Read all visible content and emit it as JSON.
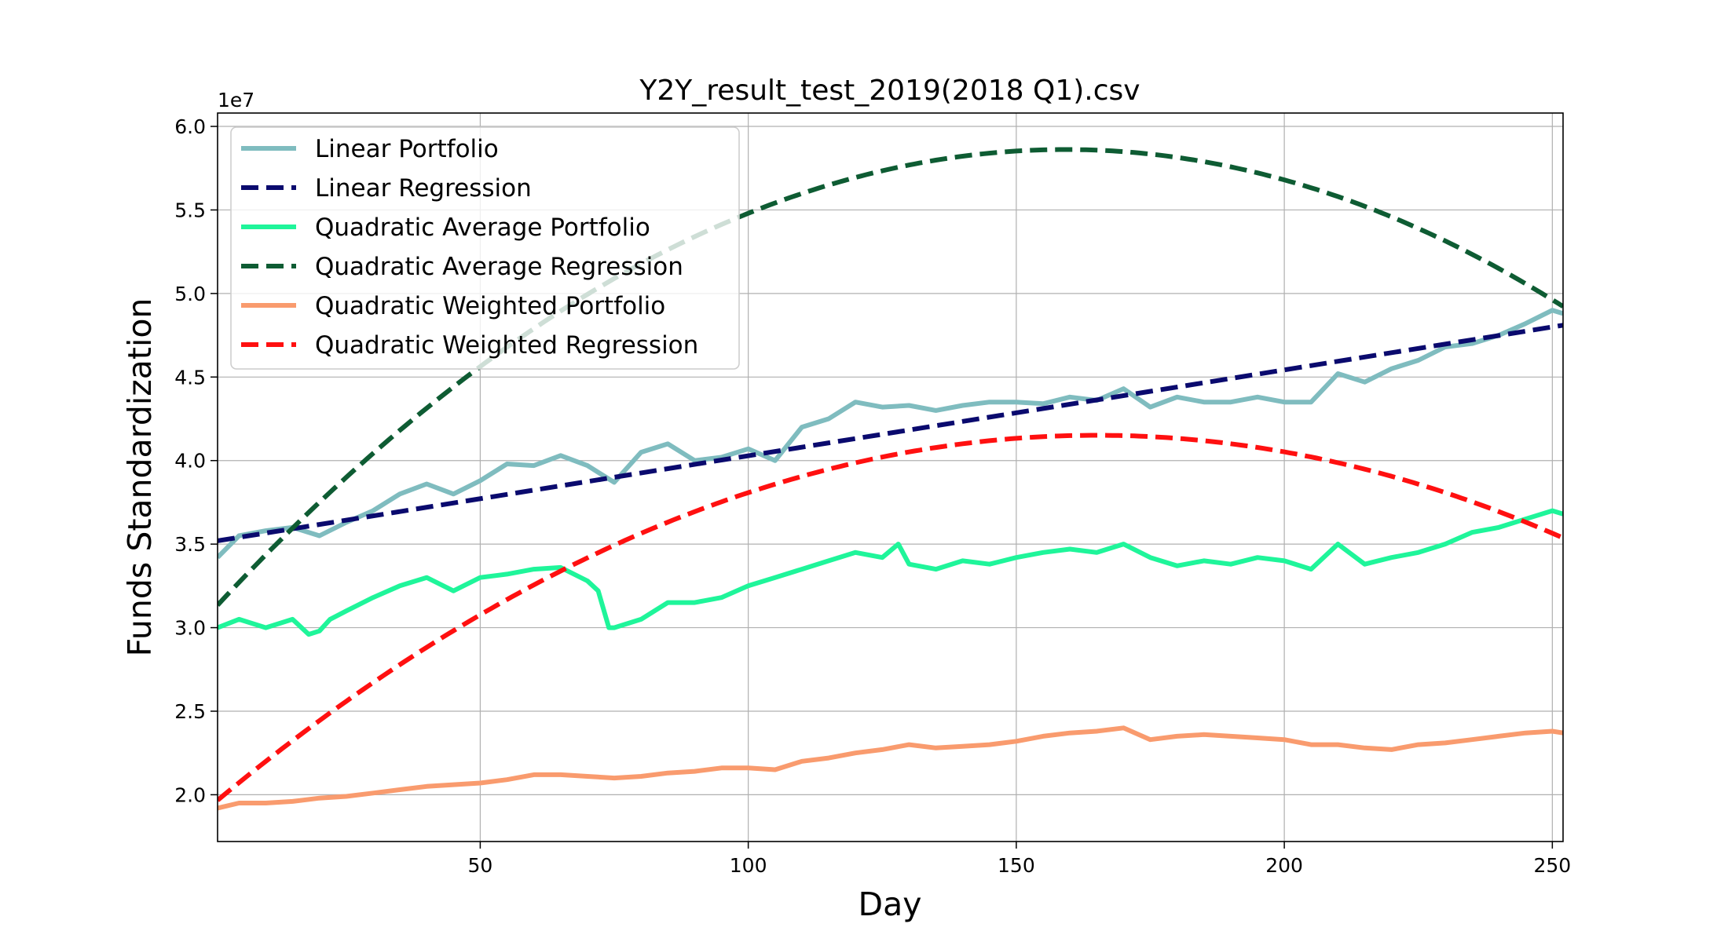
{
  "chart_data": {
    "type": "line",
    "title": "Y2Y_result_test_2019(2018 Q1).csv",
    "xlabel": "Day",
    "ylabel": "Funds Standardization",
    "y_offset_label": "1e7",
    "xlim": [
      1,
      252
    ],
    "ylim": [
      1.72,
      6.08
    ],
    "x_ticks": [
      50,
      100,
      150,
      200,
      250
    ],
    "x_tick_labels": [
      "50",
      "100",
      "150",
      "200",
      "250"
    ],
    "y_ticks": [
      2.0,
      2.5,
      3.0,
      3.5,
      4.0,
      4.5,
      5.0,
      5.5,
      6.0
    ],
    "y_tick_labels": [
      "2.0",
      "2.5",
      "3.0",
      "3.5",
      "4.0",
      "4.5",
      "5.0",
      "5.5",
      "6.0"
    ],
    "grid": true,
    "legend_position": "top-left",
    "series": [
      {
        "name": "Linear Portfolio",
        "style": "solid",
        "color": "#7fbcbf",
        "x": [
          1,
          5,
          10,
          15,
          20,
          25,
          30,
          35,
          40,
          45,
          50,
          55,
          60,
          65,
          70,
          75,
          80,
          85,
          90,
          95,
          100,
          105,
          110,
          115,
          120,
          125,
          130,
          135,
          140,
          145,
          150,
          155,
          160,
          165,
          170,
          175,
          180,
          185,
          190,
          195,
          200,
          205,
          210,
          215,
          220,
          225,
          230,
          235,
          240,
          245,
          250,
          252
        ],
        "y": [
          3.42,
          3.55,
          3.58,
          3.6,
          3.55,
          3.63,
          3.7,
          3.8,
          3.86,
          3.8,
          3.88,
          3.98,
          3.97,
          4.03,
          3.97,
          3.87,
          4.05,
          4.1,
          4.0,
          4.02,
          4.07,
          4.0,
          4.2,
          4.25,
          4.35,
          4.32,
          4.33,
          4.3,
          4.33,
          4.35,
          4.35,
          4.34,
          4.38,
          4.36,
          4.43,
          4.32,
          4.38,
          4.35,
          4.35,
          4.38,
          4.35,
          4.35,
          4.52,
          4.47,
          4.55,
          4.6,
          4.68,
          4.7,
          4.75,
          4.82,
          4.9,
          4.88
        ]
      },
      {
        "name": "Linear Regression",
        "style": "dashed",
        "color": "#0a0a6e",
        "x": [
          1,
          252
        ],
        "y": [
          3.52,
          4.81
        ]
      },
      {
        "name": "Quadratic Average Portfolio",
        "style": "solid",
        "color": "#1ff59a",
        "x": [
          1,
          5,
          10,
          15,
          18,
          20,
          22,
          25,
          30,
          35,
          40,
          45,
          50,
          55,
          60,
          65,
          70,
          72,
          74,
          75,
          80,
          85,
          90,
          95,
          100,
          105,
          110,
          115,
          120,
          125,
          128,
          130,
          135,
          140,
          145,
          150,
          155,
          160,
          165,
          170,
          175,
          180,
          185,
          190,
          195,
          200,
          205,
          210,
          215,
          220,
          225,
          230,
          235,
          240,
          245,
          250,
          252
        ],
        "y": [
          3.0,
          3.05,
          3.0,
          3.05,
          2.96,
          2.98,
          3.05,
          3.1,
          3.18,
          3.25,
          3.3,
          3.22,
          3.3,
          3.32,
          3.35,
          3.36,
          3.28,
          3.22,
          3.0,
          3.0,
          3.05,
          3.15,
          3.15,
          3.18,
          3.25,
          3.3,
          3.35,
          3.4,
          3.45,
          3.42,
          3.5,
          3.38,
          3.35,
          3.4,
          3.38,
          3.42,
          3.45,
          3.47,
          3.45,
          3.5,
          3.42,
          3.37,
          3.4,
          3.38,
          3.42,
          3.4,
          3.35,
          3.5,
          3.38,
          3.42,
          3.45,
          3.5,
          3.57,
          3.6,
          3.65,
          3.7,
          3.68
        ]
      },
      {
        "name": "Quadratic Average Regression",
        "style": "dashed",
        "color": "#0e5c33",
        "fn": "quad",
        "coeffs": [
          3.1,
          0.0347,
          -0.000109
        ],
        "x": [
          1,
          252
        ]
      },
      {
        "name": "Quadratic Weighted Portfolio",
        "style": "solid",
        "color": "#f99b6e",
        "x": [
          1,
          5,
          10,
          15,
          20,
          25,
          30,
          35,
          40,
          45,
          50,
          55,
          60,
          65,
          70,
          75,
          80,
          85,
          90,
          95,
          100,
          105,
          110,
          115,
          120,
          125,
          130,
          135,
          140,
          145,
          150,
          155,
          160,
          165,
          170,
          175,
          180,
          185,
          190,
          195,
          200,
          205,
          210,
          215,
          220,
          225,
          230,
          235,
          240,
          245,
          250,
          252
        ],
        "y": [
          1.92,
          1.95,
          1.95,
          1.96,
          1.98,
          1.99,
          2.01,
          2.03,
          2.05,
          2.06,
          2.07,
          2.09,
          2.12,
          2.12,
          2.11,
          2.1,
          2.11,
          2.13,
          2.14,
          2.16,
          2.16,
          2.15,
          2.2,
          2.22,
          2.25,
          2.27,
          2.3,
          2.28,
          2.29,
          2.3,
          2.32,
          2.35,
          2.37,
          2.38,
          2.4,
          2.33,
          2.35,
          2.36,
          2.35,
          2.34,
          2.33,
          2.3,
          2.3,
          2.28,
          2.27,
          2.3,
          2.31,
          2.33,
          2.35,
          2.37,
          2.38,
          2.37
        ]
      },
      {
        "name": "Quadratic Weighted Regression",
        "style": "dashed",
        "color": "#ff1010",
        "fn": "quad",
        "coeffs": [
          1.94,
          0.0268,
          -8.12e-05
        ],
        "x": [
          1,
          252
        ]
      }
    ]
  }
}
